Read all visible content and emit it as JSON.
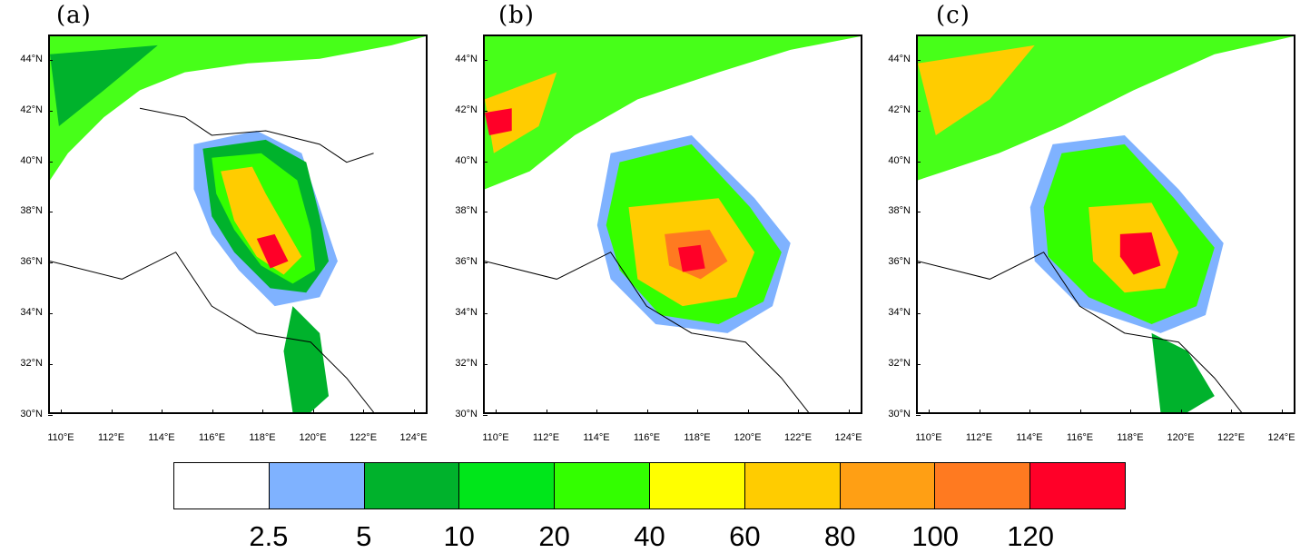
{
  "panels": [
    {
      "label": "(a)"
    },
    {
      "label": "(b)"
    },
    {
      "label": "(c)"
    }
  ],
  "axes": {
    "y_ticks": [
      "44°N",
      "42°N",
      "40°N",
      "38°N",
      "36°N",
      "34°N",
      "32°N",
      "30°N"
    ],
    "x_ticks": [
      "110°E",
      "112°E",
      "114°E",
      "116°E",
      "118°E",
      "120°E",
      "122°E",
      "124°E"
    ]
  },
  "colorbar": {
    "colors": [
      "#ffffff",
      "#7fb2ff",
      "#00b22c",
      "#00e61a",
      "#33ff00",
      "#ffff00",
      "#ffcc00",
      "#ff9f14",
      "#ff7a20",
      "#ff0028"
    ],
    "labels": [
      "2.5",
      "5",
      "10",
      "20",
      "40",
      "60",
      "80",
      "100",
      "120"
    ]
  }
}
